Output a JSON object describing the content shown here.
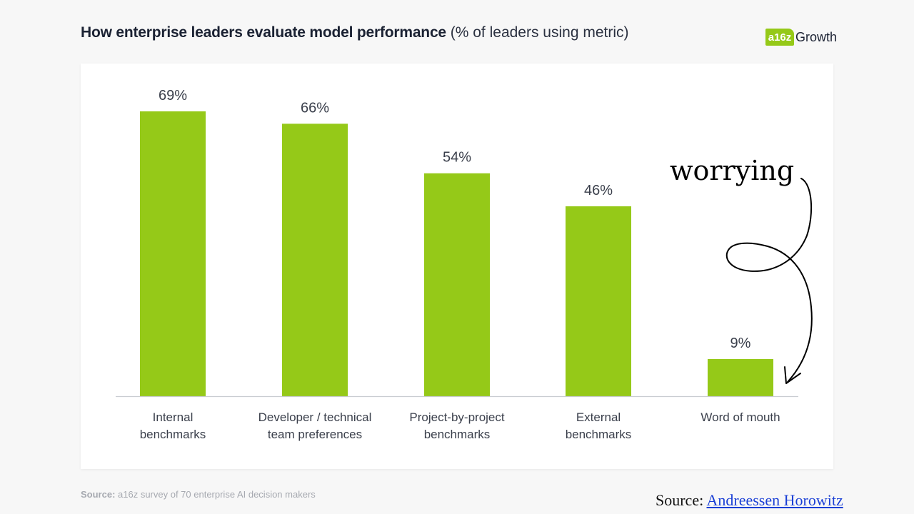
{
  "title": {
    "main": "How enterprise leaders evaluate model performance",
    "sub": "(% of leaders using metric)"
  },
  "logo": {
    "mark": "a16z",
    "text": "Growth"
  },
  "colors": {
    "bar": "#95c918",
    "text": "#3a3f4b",
    "axis": "#c9ccd1"
  },
  "chart_data": {
    "type": "bar",
    "categories": [
      [
        "Internal",
        "benchmarks"
      ],
      [
        "Developer / technical",
        "team preferences"
      ],
      [
        "Project-by-project",
        "benchmarks"
      ],
      [
        "External",
        "benchmarks"
      ],
      [
        "Word of mouth"
      ]
    ],
    "values": [
      69,
      66,
      54,
      46,
      9
    ],
    "value_labels": [
      "69%",
      "66%",
      "54%",
      "46%",
      "9%"
    ],
    "ylim": [
      0,
      69
    ],
    "grid": false,
    "annotation": "worrying"
  },
  "source_note": {
    "label": "Source:",
    "text": " a16z survey of 70 enterprise AI decision makers"
  },
  "credit": {
    "label": "Source: ",
    "link": "Andreessen Horowitz"
  }
}
